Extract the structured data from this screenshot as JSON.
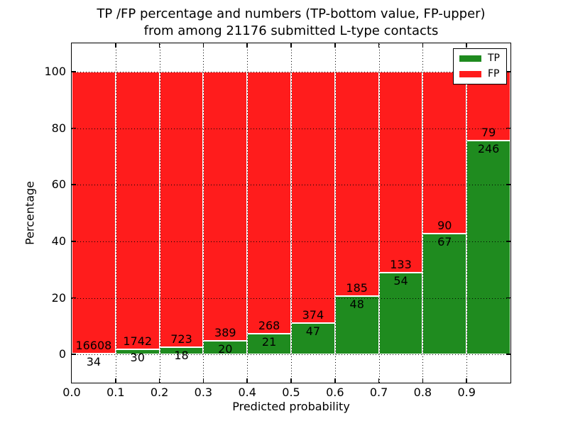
{
  "figure": {
    "title_line1": "TP /FP percentage and numbers (TP-bottom value, FP-upper)",
    "title_line2": "from among 21176 submitted L-type contacts"
  },
  "chart_data": {
    "type": "bar",
    "stacked": true,
    "normalized_to": 100,
    "title": "TP /FP percentage and numbers (TP-bottom value, FP-upper)\nfrom among 21176 submitted L-type contacts",
    "xlabel": "Predicted probability",
    "ylabel": "Percentage",
    "total_contacts": 21176,
    "bin_width": 0.1,
    "bin_starts": [
      0.0,
      0.1,
      0.2,
      0.3,
      0.4,
      0.5,
      0.6,
      0.7,
      0.8,
      0.9
    ],
    "series": [
      {
        "name": "TP",
        "color": "#1f8b1f",
        "values": [
          34,
          30,
          18,
          20,
          21,
          47,
          48,
          54,
          67,
          246
        ]
      },
      {
        "name": "FP",
        "color": "#ff1c1c",
        "values": [
          16608,
          1742,
          723,
          389,
          268,
          374,
          185,
          133,
          90,
          79
        ]
      }
    ],
    "bar_edge_color": "#ffffff",
    "annotation_note": "TP count printed below segment boundary, FP count above it",
    "xtick_labels": [
      "0.0",
      "0.1",
      "0.2",
      "0.3",
      "0.4",
      "0.5",
      "0.6",
      "0.7",
      "0.8",
      "0.9"
    ],
    "ytick_values": [
      0,
      20,
      40,
      60,
      80,
      100
    ],
    "xlim": [
      0,
      1
    ],
    "ylim": [
      -10,
      110
    ],
    "grid": "dotted black, both axes",
    "legend_position": "upper right",
    "legend_entries": [
      "TP",
      "FP"
    ]
  }
}
